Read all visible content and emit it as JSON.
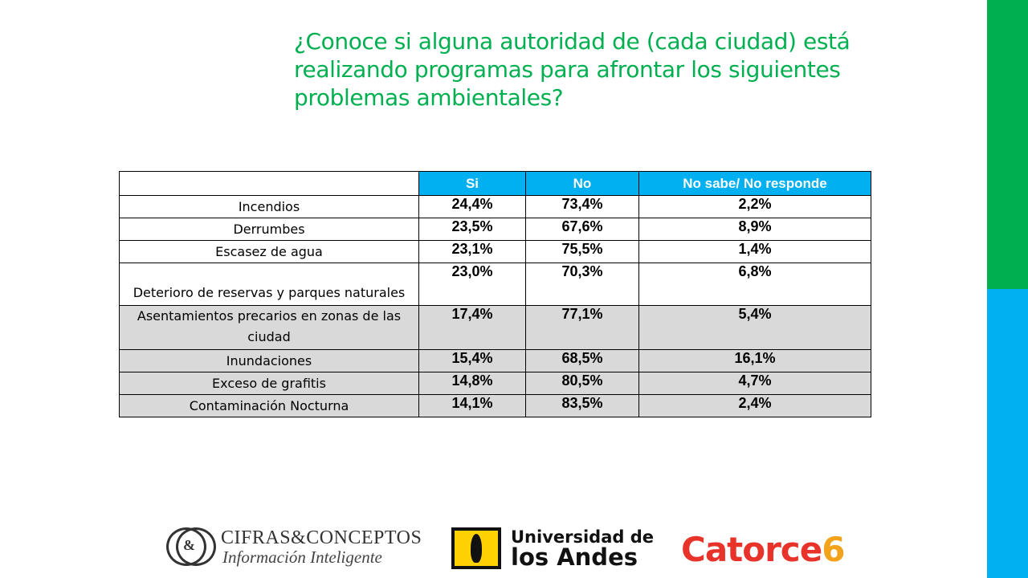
{
  "slide": {
    "title": "¿Conoce si alguna autoridad de (cada ciudad) está realizando programas para afrontar los siguientes problemas ambientales?",
    "accent_green": "#00b050",
    "accent_blue": "#00b0f0"
  },
  "table": {
    "headers": [
      "Si",
      "No",
      "No sabe/ No responde"
    ],
    "rows": [
      {
        "label": "Incendios",
        "si": "24,4%",
        "no": "73,4%",
        "ns": "2,2%"
      },
      {
        "label": "Derrumbes",
        "si": "23,5%",
        "no": "67,6%",
        "ns": "8,9%"
      },
      {
        "label": "Escasez de agua",
        "si": "23,1%",
        "no": "75,5%",
        "ns": "1,4%"
      },
      {
        "label": "Deterioro de reservas y parques naturales",
        "si": "23,0%",
        "no": "70,3%",
        "ns": "6,8%"
      },
      {
        "label": "Asentamientos precarios en zonas de las ciudad",
        "si": "17,4%",
        "no": "77,1%",
        "ns": "5,4%"
      },
      {
        "label": "Inundaciones",
        "si": "15,4%",
        "no": "68,5%",
        "ns": "16,1%"
      },
      {
        "label": "Exceso de grafitis",
        "si": "14,8%",
        "no": "80,5%",
        "ns": "4,7%"
      },
      {
        "label": "Contaminación Nocturna",
        "si": "14,1%",
        "no": "83,5%",
        "ns": "2,4%"
      }
    ]
  },
  "logos": {
    "cifras_name": "CIFRAS&CONCEPTOS",
    "cifras_tagline": "Información Inteligente",
    "cifras_mark": "&",
    "andes_line1": "Universidad de",
    "andes_line2": "los Andes",
    "catorce_text": "Catorce",
    "catorce_six": "6"
  }
}
